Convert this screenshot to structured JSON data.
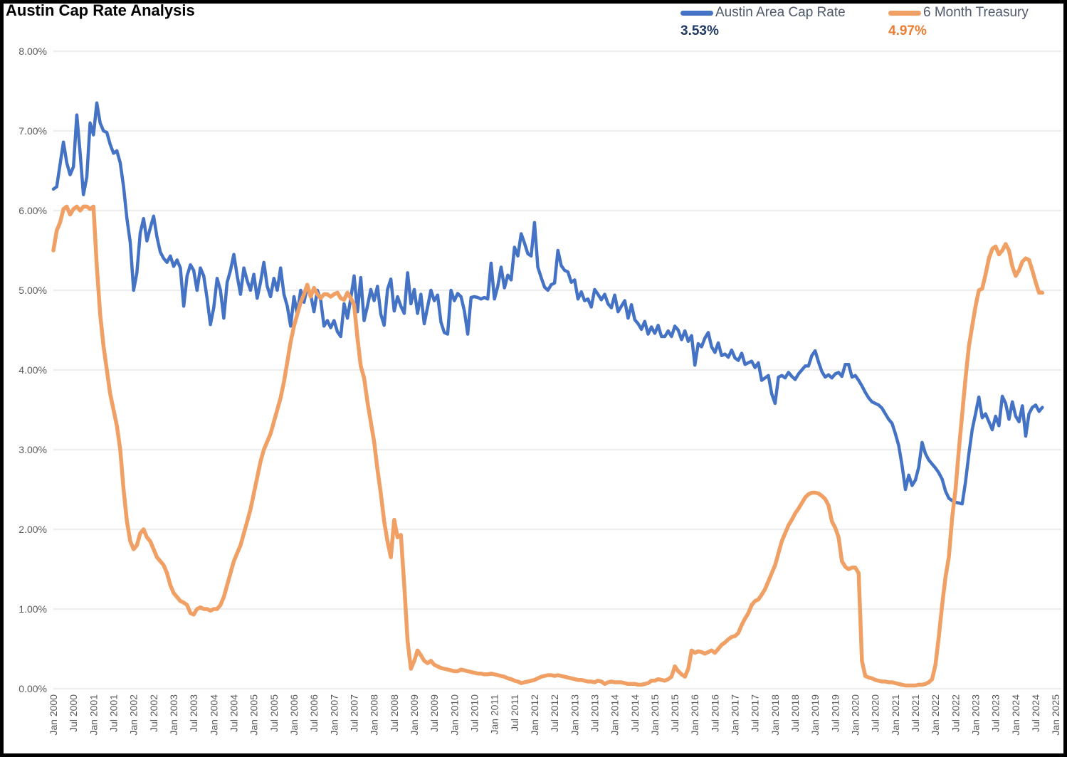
{
  "header": {
    "title": "Austin Cap Rate Analysis"
  },
  "legend": {
    "items": [
      {
        "label": "Austin Area Cap Rate",
        "current_value": "3.53%"
      },
      {
        "label": "6 Month Treasury",
        "current_value": "4.97%"
      }
    ]
  },
  "colors": {
    "cap_rate_line": "#4472C4",
    "treasury_line": "#F0A064",
    "cap_rate_value_text": "#1F3864",
    "treasury_value_text": "#ED7D31",
    "legend_label_text": "#4E586B",
    "axis_text": "#595959",
    "gridline": "#D9D9D9",
    "title_text": "#000000",
    "background": "#FFFFFF",
    "border": "#000000"
  },
  "chart_data": {
    "type": "line",
    "title": "Austin Cap Rate Analysis",
    "x_unit": "month",
    "x_range": [
      "Jan 2000",
      "Sep 2024"
    ],
    "ylim": [
      0,
      8
    ],
    "grid": "horizontal",
    "legend_position": "top-right",
    "y_tick_labels": [
      "8.00%",
      "7.00%",
      "6.00%",
      "5.00%",
      "4.00%",
      "3.00%",
      "2.00%",
      "1.00%",
      "0.00%"
    ],
    "x_tick_labels": [
      "Jan 2000",
      "Jul 2000",
      "Jan 2001",
      "Jul 2001",
      "Jan 2002",
      "Jul 2002",
      "Jan 2003",
      "Jul 2003",
      "Jan 2004",
      "Jul 2004",
      "Jan 2005",
      "Jul 2005",
      "Jan 2006",
      "Jul 2006",
      "Jan 2007",
      "Jul 2007",
      "Jan 2008",
      "Jul 2008",
      "Jan 2009",
      "Jul 2009",
      "Jan 2010",
      "Jul 2010",
      "Jan 2011",
      "Jul 2011",
      "Jan 2012",
      "Jul 2012",
      "Jan 2013",
      "Jul 2013",
      "Jan 2014",
      "Jul 2014",
      "Jan 2015",
      "Jul 2015",
      "Jan 2016",
      "Jul 2016",
      "Jan 2017",
      "Jul 2017",
      "Jan 2018",
      "Jul 2018",
      "Jan 2019",
      "Jul 2019",
      "Jan 2020",
      "Jul 2020",
      "Jan 2021",
      "Jul 2021",
      "Jan 2022",
      "Jul 2022",
      "Jan 2023",
      "Jul 2023",
      "Jan 2024",
      "Jul 2024",
      "Jan 2025"
    ],
    "series": [
      {
        "name": "Austin Area Cap Rate",
        "color": "#4472C4",
        "stroke_width": 4.5,
        "final_value": 3.53,
        "values": [
          6.27,
          6.3,
          6.58,
          6.86,
          6.6,
          6.45,
          6.55,
          7.2,
          6.72,
          6.2,
          6.42,
          7.1,
          6.95,
          7.35,
          7.1,
          7.0,
          6.98,
          6.83,
          6.72,
          6.75,
          6.6,
          6.3,
          5.9,
          5.6,
          5.0,
          5.22,
          5.72,
          5.9,
          5.62,
          5.78,
          5.93,
          5.67,
          5.48,
          5.4,
          5.35,
          5.43,
          5.3,
          5.38,
          5.28,
          4.8,
          5.18,
          5.32,
          5.25,
          5.0,
          5.28,
          5.18,
          4.9,
          4.57,
          4.78,
          5.15,
          5.0,
          4.65,
          5.1,
          5.25,
          5.45,
          5.18,
          4.95,
          5.28,
          5.12,
          5.0,
          5.2,
          4.9,
          5.1,
          5.35,
          5.05,
          4.92,
          5.15,
          5.0,
          5.28,
          4.95,
          4.8,
          4.55,
          4.92,
          4.7,
          5.0,
          4.85,
          5.05,
          4.95,
          4.73,
          5.0,
          4.88,
          4.55,
          4.62,
          4.53,
          4.62,
          4.48,
          4.42,
          4.83,
          4.65,
          4.9,
          5.18,
          4.73,
          5.16,
          4.62,
          4.8,
          5.01,
          4.87,
          5.05,
          4.7,
          4.56,
          5.01,
          5.14,
          4.74,
          4.92,
          4.8,
          4.71,
          5.22,
          4.83,
          5.01,
          4.71,
          4.95,
          4.58,
          4.79,
          5.0,
          4.87,
          4.94,
          4.6,
          4.47,
          4.45,
          5.0,
          4.87,
          4.96,
          4.92,
          4.74,
          4.45,
          4.91,
          4.92,
          4.91,
          4.89,
          4.91,
          4.89,
          5.34,
          4.89,
          5.05,
          5.29,
          5.03,
          5.19,
          5.13,
          5.54,
          5.43,
          5.71,
          5.59,
          5.46,
          5.43,
          5.85,
          5.29,
          5.16,
          5.04,
          5.0,
          5.07,
          5.09,
          5.5,
          5.31,
          5.25,
          5.23,
          5.1,
          5.13,
          4.89,
          4.98,
          4.87,
          4.89,
          4.79,
          5.01,
          4.95,
          4.88,
          4.95,
          4.83,
          4.78,
          4.94,
          4.73,
          4.8,
          4.87,
          4.65,
          4.82,
          4.63,
          4.58,
          4.51,
          4.61,
          4.45,
          4.54,
          4.46,
          4.56,
          4.42,
          4.42,
          4.49,
          4.42,
          4.55,
          4.5,
          4.38,
          4.49,
          4.36,
          4.43,
          4.06,
          4.33,
          4.29,
          4.4,
          4.47,
          4.29,
          4.22,
          4.34,
          4.18,
          4.2,
          4.16,
          4.25,
          4.15,
          4.12,
          4.21,
          4.07,
          4.09,
          4.11,
          4.03,
          4.09,
          3.87,
          3.9,
          3.93,
          3.7,
          3.58,
          3.91,
          3.93,
          3.9,
          3.97,
          3.92,
          3.88,
          3.95,
          4.0,
          4.05,
          4.05,
          4.18,
          4.24,
          4.1,
          3.98,
          3.91,
          3.94,
          3.9,
          3.95,
          3.97,
          3.92,
          4.07,
          4.07,
          3.91,
          3.93,
          3.87,
          3.8,
          3.72,
          3.65,
          3.6,
          3.58,
          3.56,
          3.52,
          3.45,
          3.38,
          3.33,
          3.2,
          3.05,
          2.8,
          2.5,
          2.68,
          2.55,
          2.62,
          2.78,
          3.09,
          2.95,
          2.87,
          2.82,
          2.77,
          2.71,
          2.63,
          2.48,
          2.39,
          2.36,
          2.34,
          2.33,
          2.32,
          2.6,
          2.95,
          3.25,
          3.45,
          3.66,
          3.4,
          3.45,
          3.35,
          3.25,
          3.42,
          3.3,
          3.67,
          3.58,
          3.38,
          3.6,
          3.42,
          3.35,
          3.55,
          3.17,
          3.45,
          3.53,
          3.56,
          3.48,
          3.53
        ]
      },
      {
        "name": "6 Month Treasury",
        "color": "#F0A064",
        "stroke_width": 5.5,
        "final_value": 4.97,
        "values": [
          5.5,
          5.75,
          5.85,
          6.02,
          6.05,
          5.95,
          6.02,
          6.05,
          6.0,
          6.05,
          6.05,
          6.02,
          6.05,
          5.3,
          4.7,
          4.3,
          4.0,
          3.7,
          3.5,
          3.3,
          3.0,
          2.5,
          2.1,
          1.85,
          1.75,
          1.8,
          1.95,
          2.0,
          1.9,
          1.85,
          1.75,
          1.65,
          1.6,
          1.55,
          1.45,
          1.3,
          1.2,
          1.15,
          1.1,
          1.08,
          1.05,
          0.95,
          0.93,
          1.0,
          1.02,
          1.0,
          1.0,
          0.98,
          1.0,
          1.0,
          1.05,
          1.15,
          1.3,
          1.45,
          1.6,
          1.7,
          1.8,
          1.95,
          2.1,
          2.25,
          2.45,
          2.65,
          2.85,
          3.0,
          3.1,
          3.2,
          3.35,
          3.5,
          3.65,
          3.85,
          4.1,
          4.35,
          4.55,
          4.7,
          4.85,
          4.95,
          5.07,
          4.92,
          5.03,
          4.95,
          4.9,
          4.95,
          4.95,
          4.92,
          4.95,
          4.97,
          4.9,
          4.88,
          4.97,
          4.9,
          4.82,
          4.4,
          4.05,
          3.9,
          3.6,
          3.35,
          3.1,
          2.75,
          2.45,
          2.1,
          1.85,
          1.65,
          2.12,
          1.9,
          1.93,
          1.3,
          0.6,
          0.25,
          0.35,
          0.48,
          0.42,
          0.35,
          0.32,
          0.35,
          0.3,
          0.28,
          0.26,
          0.25,
          0.24,
          0.23,
          0.22,
          0.22,
          0.24,
          0.23,
          0.22,
          0.21,
          0.2,
          0.19,
          0.19,
          0.18,
          0.18,
          0.19,
          0.18,
          0.17,
          0.16,
          0.15,
          0.13,
          0.12,
          0.1,
          0.09,
          0.07,
          0.08,
          0.09,
          0.1,
          0.11,
          0.13,
          0.15,
          0.16,
          0.17,
          0.17,
          0.16,
          0.17,
          0.16,
          0.15,
          0.14,
          0.13,
          0.12,
          0.11,
          0.11,
          0.1,
          0.09,
          0.09,
          0.08,
          0.1,
          0.09,
          0.06,
          0.08,
          0.09,
          0.08,
          0.08,
          0.08,
          0.07,
          0.06,
          0.06,
          0.06,
          0.05,
          0.05,
          0.06,
          0.07,
          0.1,
          0.1,
          0.12,
          0.11,
          0.1,
          0.12,
          0.15,
          0.28,
          0.22,
          0.18,
          0.15,
          0.25,
          0.48,
          0.45,
          0.47,
          0.46,
          0.44,
          0.46,
          0.48,
          0.45,
          0.5,
          0.55,
          0.58,
          0.62,
          0.65,
          0.66,
          0.7,
          0.8,
          0.88,
          0.95,
          1.05,
          1.1,
          1.12,
          1.18,
          1.25,
          1.35,
          1.45,
          1.55,
          1.7,
          1.85,
          1.95,
          2.05,
          2.12,
          2.2,
          2.26,
          2.33,
          2.4,
          2.44,
          2.46,
          2.46,
          2.45,
          2.42,
          2.38,
          2.3,
          2.1,
          2.02,
          1.9,
          1.6,
          1.53,
          1.5,
          1.52,
          1.52,
          1.45,
          0.35,
          0.16,
          0.14,
          0.13,
          0.11,
          0.1,
          0.09,
          0.09,
          0.08,
          0.08,
          0.07,
          0.06,
          0.05,
          0.04,
          0.04,
          0.04,
          0.04,
          0.05,
          0.05,
          0.06,
          0.08,
          0.12,
          0.3,
          0.65,
          1.05,
          1.4,
          1.65,
          2.15,
          2.5,
          3.0,
          3.45,
          3.9,
          4.3,
          4.55,
          4.8,
          5.0,
          5.02,
          5.2,
          5.4,
          5.52,
          5.55,
          5.45,
          5.5,
          5.58,
          5.5,
          5.3,
          5.18,
          5.25,
          5.36,
          5.4,
          5.38,
          5.25,
          5.1,
          4.97,
          4.97
        ]
      }
    ]
  }
}
